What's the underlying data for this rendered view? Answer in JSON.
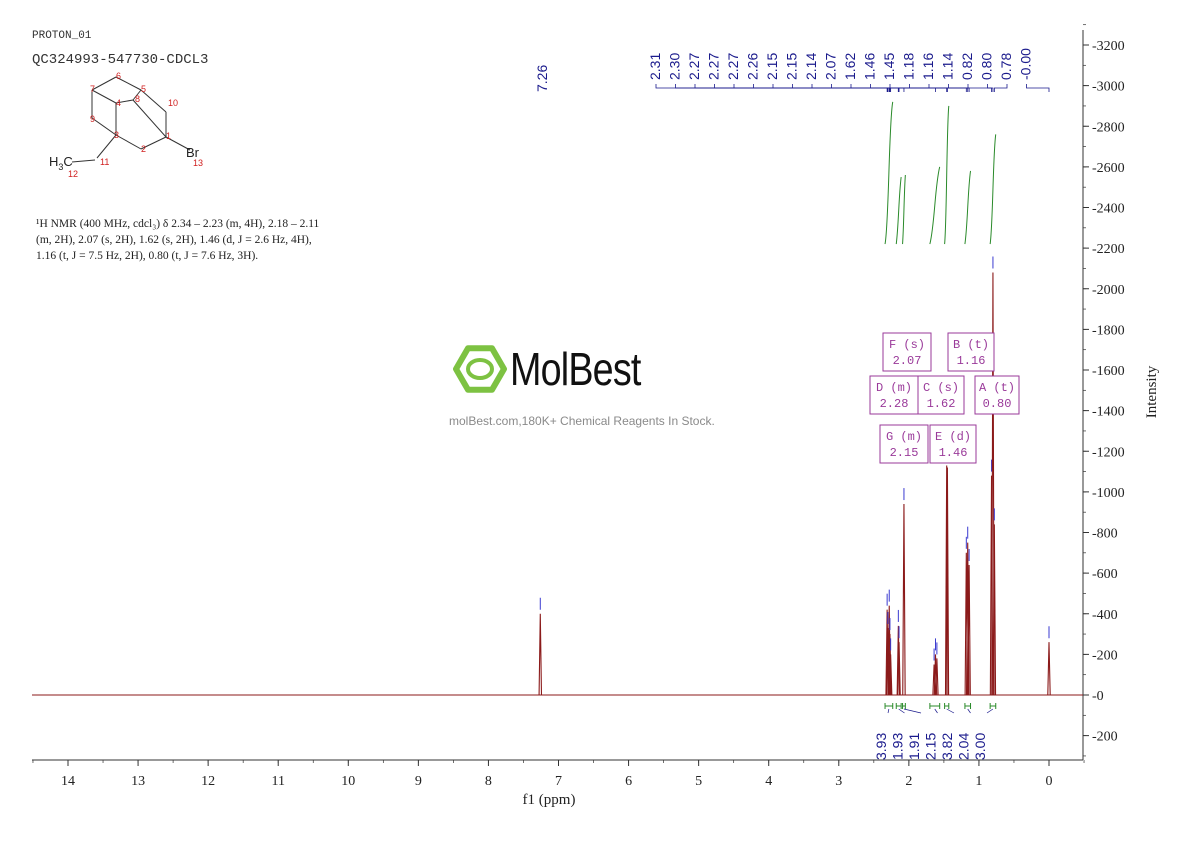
{
  "header": {
    "experiment": "PROTON_01",
    "sample": "QC324993-547730-CDCL3"
  },
  "structure": {
    "atoms": [
      "1",
      "2",
      "3",
      "4",
      "5",
      "6",
      "7",
      "8",
      "9",
      "10",
      "11",
      "12",
      "13"
    ],
    "bromine": "Br",
    "methyl": "H",
    "methyl_sub": "3",
    "methyl_c": "C"
  },
  "description": {
    "line1": "¹H NMR (400 MHz, cdcl₃) δ 2.34 – 2.23 (m, 4H), 2.18 – 2.11",
    "line2": "(m, 2H), 2.07 (s, 2H), 1.62 (s, 2H), 1.46 (d, J = 2.6 Hz, 4H),",
    "line3": "1.16 (t, J = 7.5 Hz, 2H), 0.80 (t, J = 7.6 Hz, 3H)."
  },
  "watermark": {
    "brand": "MolBest",
    "tagline": "molBest.com,180K+ Chemical Reagents In Stock."
  },
  "colors": {
    "spectrum": "#8b1a1a",
    "peak_labels": "#1a1a8c",
    "integrals": "#2a8a2a",
    "multiplet_boxes": "#9a3a9a",
    "axis": "#333333",
    "logo": "#7dc242"
  },
  "chart_data": {
    "type": "line",
    "xlabel": "f1 (ppm)",
    "ylabel": "Intensity",
    "xlim": [
      14.5,
      -0.5
    ],
    "ylim": [
      -300,
      3300
    ],
    "x_ticks": [
      14,
      13,
      12,
      11,
      10,
      9,
      8,
      7,
      6,
      5,
      4,
      3,
      2,
      1,
      0
    ],
    "y_ticks": [
      -200,
      0,
      200,
      400,
      600,
      800,
      1000,
      1200,
      1400,
      1600,
      1800,
      2000,
      2200,
      2400,
      2600,
      2800,
      3000,
      3200
    ],
    "peaks": [
      {
        "ppm": 7.26,
        "height": 400
      },
      {
        "ppm": 2.31,
        "height": 420
      },
      {
        "ppm": 2.3,
        "height": 330
      },
      {
        "ppm": 2.28,
        "height": 440
      },
      {
        "ppm": 2.27,
        "height": 300
      },
      {
        "ppm": 2.26,
        "height": 200
      },
      {
        "ppm": 2.15,
        "height": 340
      },
      {
        "ppm": 2.14,
        "height": 260
      },
      {
        "ppm": 2.07,
        "height": 940
      },
      {
        "ppm": 1.64,
        "height": 150
      },
      {
        "ppm": 1.62,
        "height": 200
      },
      {
        "ppm": 1.6,
        "height": 180
      },
      {
        "ppm": 1.46,
        "height": 1130
      },
      {
        "ppm": 1.45,
        "height": 1120
      },
      {
        "ppm": 1.18,
        "height": 700
      },
      {
        "ppm": 1.16,
        "height": 750
      },
      {
        "ppm": 1.14,
        "height": 640
      },
      {
        "ppm": 0.82,
        "height": 1080
      },
      {
        "ppm": 0.8,
        "height": 2080
      },
      {
        "ppm": 0.78,
        "height": 840
      },
      {
        "ppm": 0.0,
        "height": 260
      }
    ],
    "peak_labels": [
      "7.26",
      "2.31",
      "2.30",
      "2.27",
      "2.27",
      "2.27",
      "2.26",
      "2.15",
      "2.15",
      "2.14",
      "2.07",
      "1.62",
      "1.46",
      "1.45",
      "1.18",
      "1.16",
      "1.14",
      "0.82",
      "0.80",
      "0.78",
      "-0.00"
    ],
    "integrals": [
      {
        "value": "3.93",
        "from": 2.34,
        "to": 2.23
      },
      {
        "value": "1.93",
        "from": 2.18,
        "to": 2.11
      },
      {
        "value": "1.91",
        "from": 2.09,
        "to": 2.05
      },
      {
        "value": "2.15",
        "from": 1.7,
        "to": 1.56
      },
      {
        "value": "3.82",
        "from": 1.49,
        "to": 1.43
      },
      {
        "value": "2.04",
        "from": 1.2,
        "to": 1.12
      },
      {
        "value": "3.00",
        "from": 0.84,
        "to": 0.76
      }
    ],
    "multiplets": [
      {
        "label": "F (s)",
        "shift": "2.07"
      },
      {
        "label": "B (t)",
        "shift": "1.16"
      },
      {
        "label": "D (m)",
        "shift": "2.28"
      },
      {
        "label": "C (s)",
        "shift": "1.62"
      },
      {
        "label": "A (t)",
        "shift": "0.80"
      },
      {
        "label": "G (m)",
        "shift": "2.15"
      },
      {
        "label": "E (d)",
        "shift": "1.46"
      }
    ]
  }
}
